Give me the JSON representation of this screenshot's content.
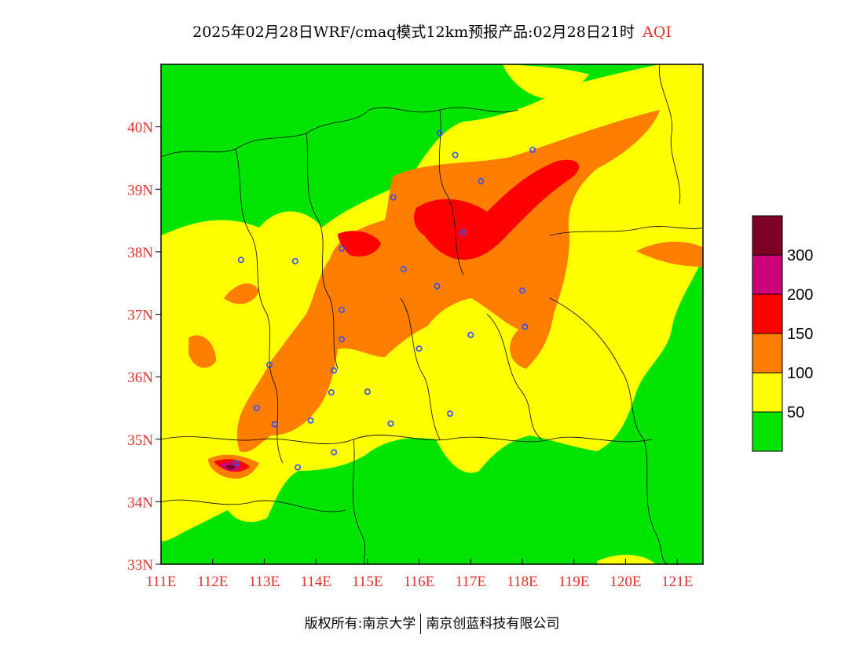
{
  "title": {
    "main": "2025年02月28日WRF/cmaq模式12km预报产品:02月28日21时",
    "variable": "AQI"
  },
  "map": {
    "lon_range": [
      111,
      121.5
    ],
    "lat_range": [
      33,
      41
    ],
    "x_ticks": [
      "111E",
      "112E",
      "113E",
      "114E",
      "115E",
      "116E",
      "117E",
      "118E",
      "119E",
      "120E",
      "121E"
    ],
    "y_ticks": [
      "33N",
      "34N",
      "35N",
      "36N",
      "37N",
      "38N",
      "39N",
      "40N"
    ]
  },
  "legend": {
    "levels": [
      {
        "label": "50",
        "color": "#00e400"
      },
      {
        "label": "100",
        "color": "#ffff00"
      },
      {
        "label": "150",
        "color": "#ff7e00"
      },
      {
        "label": "200",
        "color": "#ff0000"
      },
      {
        "label": "300",
        "color": "#cc0077"
      },
      {
        "label": "",
        "color": "#7e0023"
      }
    ]
  },
  "stations": [
    [
      116.4,
      39.9
    ],
    [
      116.7,
      39.55
    ],
    [
      117.2,
      39.13
    ],
    [
      118.2,
      39.63
    ],
    [
      115.5,
      38.87
    ],
    [
      116.85,
      38.31
    ],
    [
      114.5,
      38.05
    ],
    [
      113.6,
      37.85
    ],
    [
      112.55,
      37.87
    ],
    [
      115.7,
      37.72
    ],
    [
      116.35,
      37.45
    ],
    [
      118.0,
      37.38
    ],
    [
      114.5,
      37.07
    ],
    [
      114.5,
      36.6
    ],
    [
      116.0,
      36.45
    ],
    [
      117.0,
      36.67
    ],
    [
      118.05,
      36.8
    ],
    [
      113.1,
      36.19
    ],
    [
      114.35,
      36.1
    ],
    [
      114.3,
      35.75
    ],
    [
      115.0,
      35.76
    ],
    [
      112.85,
      35.5
    ],
    [
      113.2,
      35.24
    ],
    [
      113.9,
      35.3
    ],
    [
      115.45,
      35.25
    ],
    [
      116.6,
      35.41
    ],
    [
      114.35,
      34.79
    ],
    [
      113.65,
      34.55
    ],
    [
      112.45,
      34.62
    ]
  ],
  "footer": {
    "copyright": "版权所有:南京大学",
    "company": "南京创蓝科技有限公司"
  }
}
